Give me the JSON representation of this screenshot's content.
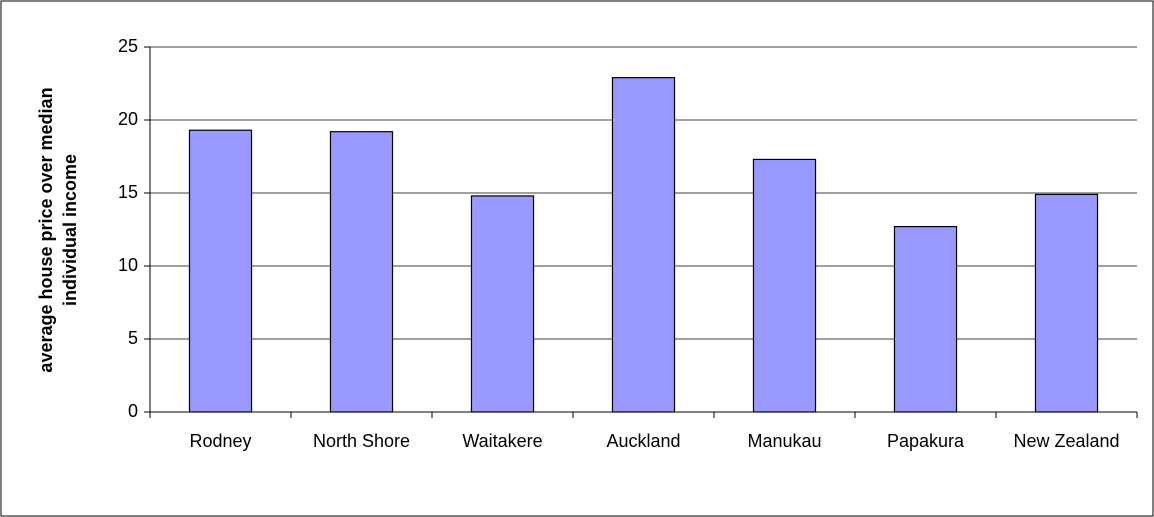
{
  "chart_data": {
    "type": "bar",
    "y_label": [
      "average house price over median",
      "individual income"
    ],
    "categories": [
      "Rodney",
      "North Shore",
      "Waitakere",
      "Auckland",
      "Manukau",
      "Papakura",
      "New Zealand"
    ],
    "values": [
      19.3,
      19.2,
      14.8,
      22.9,
      17.3,
      12.7,
      14.9
    ],
    "color": "#9999ff",
    "ylim": [
      0,
      25
    ],
    "yticks": [
      0,
      5,
      10,
      15,
      20,
      25
    ],
    "grid": true
  }
}
